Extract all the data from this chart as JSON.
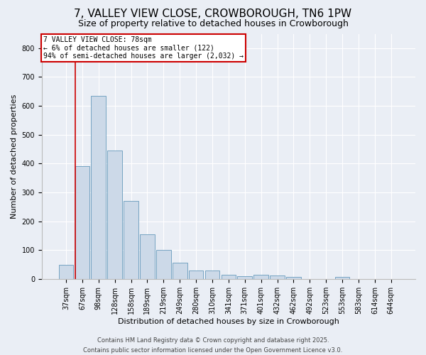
{
  "title": "7, VALLEY VIEW CLOSE, CROWBOROUGH, TN6 1PW",
  "subtitle": "Size of property relative to detached houses in Crowborough",
  "xlabel": "Distribution of detached houses by size in Crowborough",
  "ylabel": "Number of detached properties",
  "bar_labels": [
    "37sqm",
    "67sqm",
    "98sqm",
    "128sqm",
    "158sqm",
    "189sqm",
    "219sqm",
    "249sqm",
    "280sqm",
    "310sqm",
    "341sqm",
    "371sqm",
    "401sqm",
    "432sqm",
    "462sqm",
    "492sqm",
    "523sqm",
    "553sqm",
    "583sqm",
    "614sqm",
    "644sqm"
  ],
  "bar_values": [
    50,
    390,
    635,
    445,
    270,
    155,
    100,
    57,
    30,
    30,
    15,
    10,
    15,
    12,
    8,
    0,
    0,
    8,
    0,
    0,
    0
  ],
  "bar_color": "#ccd9e8",
  "bar_edge_color": "#6699bb",
  "red_line_index": 1,
  "annotation_text": "7 VALLEY VIEW CLOSE: 78sqm\n← 6% of detached houses are smaller (122)\n94% of semi-detached houses are larger (2,032) →",
  "annotation_box_color": "#ffffff",
  "annotation_box_edge": "#cc0000",
  "vline_color": "#cc0000",
  "bg_color": "#eaeef5",
  "grid_color": "#ffffff",
  "footer1": "Contains HM Land Registry data © Crown copyright and database right 2025.",
  "footer2": "Contains public sector information licensed under the Open Government Licence v3.0.",
  "ylim": [
    0,
    850
  ],
  "title_fontsize": 11,
  "subtitle_fontsize": 9,
  "axis_label_fontsize": 8,
  "tick_fontsize": 7,
  "footer_fontsize": 6
}
